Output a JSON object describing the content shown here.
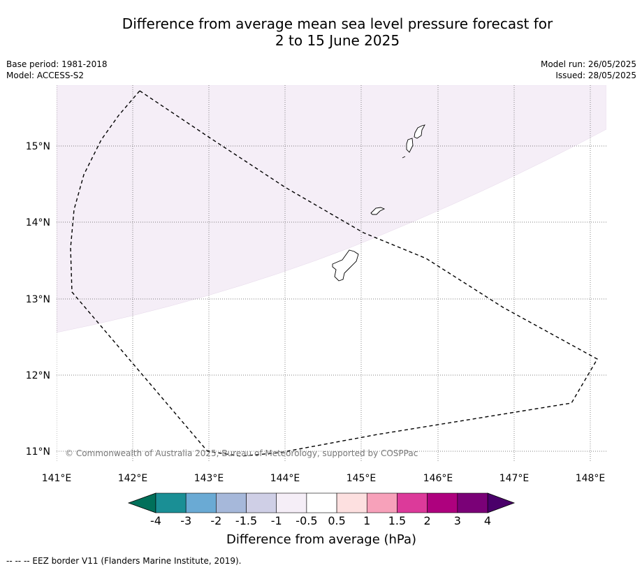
{
  "title_line1": "Difference from average mean sea level pressure forecast for",
  "title_line2": "2 to 15 June 2025",
  "base_period": "Base period: 1981-2018",
  "model": "Model: ACCESS-S2",
  "model_run": "Model run: 26/05/2025",
  "issued": "Issued: 28/05/2025",
  "lat_labels": [
    "15°N",
    "14°N",
    "13°N",
    "12°N",
    "11°N"
  ],
  "lon_labels": [
    "141°E",
    "142°E",
    "143°E",
    "144°E",
    "145°E",
    "146°E",
    "147°E",
    "148°E"
  ],
  "copyright": "© Commonwealth of Australia 2025, Bureau of Meteorology, supported by COSPPac",
  "colorbar": {
    "label": "Difference from average (hPa)",
    "ticks": [
      "-4",
      "-3",
      "-2",
      "-1.5",
      "-1",
      "-0.5",
      "0.5",
      "1",
      "1.5",
      "2",
      "3",
      "4"
    ],
    "colors": [
      "#1a8f95",
      "#6aaad4",
      "#a6b8da",
      "#cfcfe6",
      "#f5eef7",
      "#ffffff",
      "#fde0e0",
      "#f7a1ba",
      "#dc3a9a",
      "#ae017e",
      "#7a0177"
    ],
    "under_color": "#00705a",
    "over_color": "#4a006a"
  },
  "map_data": {
    "shaded_category": "-1 to -0.5",
    "shaded_color": "#f5eef7"
  },
  "footer": "--  --  -- EEZ border V11 (Flanders Marine Institute, 2019)."
}
